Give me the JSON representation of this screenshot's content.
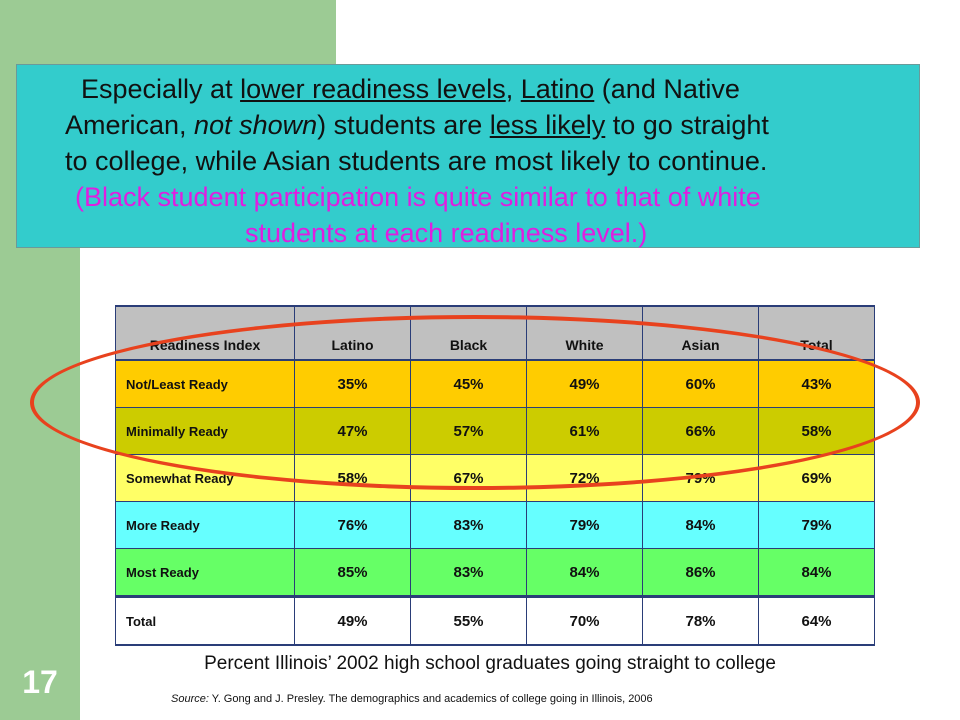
{
  "slide_number": "17",
  "headline": {
    "line1": [
      "Especially at ",
      "lower readiness levels",
      ", ",
      "Latino",
      " (and Native"
    ],
    "line2": [
      "American, ",
      "not shown",
      ") students are ",
      "less likely",
      " to go straight"
    ],
    "line3": "to college,  while Asian students are most likely to continue.",
    "line4": "(Black student participation is quite similar to that of white",
    "line5": "students at each readiness level.)"
  },
  "table": {
    "headers": [
      "Readiness Index",
      "Latino",
      "Black",
      "White",
      "Asian",
      "Total"
    ],
    "rows": [
      {
        "label": "Not/Least  Ready",
        "values": [
          "35%",
          "45%",
          "49%",
          "60%",
          "43%"
        ]
      },
      {
        "label": "Minimally  Ready",
        "values": [
          "47%",
          "57%",
          "61%",
          "66%",
          "58%"
        ]
      },
      {
        "label": "Somewhat  Ready",
        "values": [
          "58%",
          "67%",
          "72%",
          "79%",
          "69%"
        ]
      },
      {
        "label": "More  Ready",
        "values": [
          "76%",
          "83%",
          "79%",
          "84%",
          "79%"
        ]
      },
      {
        "label": "Most  Ready",
        "values": [
          "85%",
          "83%",
          "84%",
          "86%",
          "84%"
        ]
      },
      {
        "label": "Total",
        "values": [
          "49%",
          "55%",
          "70%",
          "78%",
          "64%"
        ]
      }
    ],
    "row_colors": [
      "#ffcc00",
      "#cccc00",
      "#ffff66",
      "#66ffff",
      "#66ff66",
      "#ffffff"
    ],
    "label_text_colors": [
      "#111111",
      "#111111",
      "#111111",
      "#111111",
      "#111111",
      "#111111"
    ],
    "highlight_color": "#e8421e"
  },
  "caption": "Percent Illinois’ 2002 high school graduates going straight to college",
  "source": {
    "label": "Source:",
    "text": " Y. Gong and J. Presley. The demographics and academics of college going in Illinois, 2006"
  }
}
